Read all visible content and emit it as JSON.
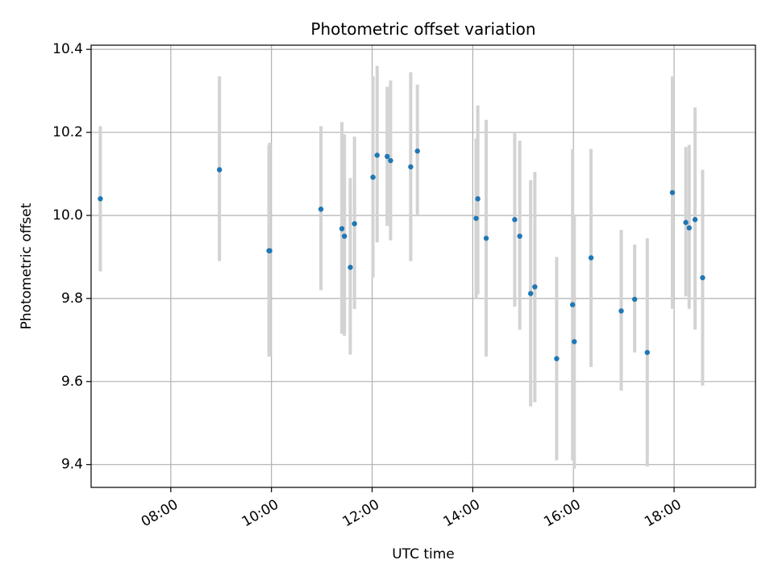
{
  "chart_data": {
    "type": "scatter",
    "title": "Photometric offset variation",
    "xlabel": "UTC time",
    "ylabel": "Photometric offset",
    "x_ticks": [
      "08:00",
      "10:00",
      "12:00",
      "14:00",
      "16:00",
      "18:00"
    ],
    "y_ticks": [
      "9.4",
      "9.6",
      "9.8",
      "10.0",
      "10.2",
      "10.4"
    ],
    "xlim": [
      "06:25",
      "19:37"
    ],
    "ylim": [
      9.345,
      10.41
    ],
    "grid": true,
    "colors": {
      "point": "#1f77b4",
      "errorbar": "#d3d3d3",
      "grid": "#b0b0b0"
    },
    "points": [
      {
        "x": "06:36",
        "y": 10.04,
        "yerr_low": 9.865,
        "yerr_high": 10.215
      },
      {
        "x": "08:58",
        "y": 10.11,
        "yerr_low": 9.89,
        "yerr_high": 10.335
      },
      {
        "x": "09:57",
        "y": 9.915,
        "yerr_low": 9.66,
        "yerr_high": 10.17
      },
      {
        "x": "09:58",
        "y": 9.915,
        "yerr_low": 9.66,
        "yerr_high": 10.175
      },
      {
        "x": "10:59",
        "y": 10.015,
        "yerr_low": 9.82,
        "yerr_high": 10.215
      },
      {
        "x": "11:24",
        "y": 9.968,
        "yerr_low": 9.715,
        "yerr_high": 10.225
      },
      {
        "x": "11:27",
        "y": 9.95,
        "yerr_low": 9.71,
        "yerr_high": 10.195
      },
      {
        "x": "11:34",
        "y": 9.875,
        "yerr_low": 9.665,
        "yerr_high": 10.09
      },
      {
        "x": "11:39",
        "y": 9.98,
        "yerr_low": 9.775,
        "yerr_high": 10.19
      },
      {
        "x": "12:01",
        "y": 10.092,
        "yerr_low": 9.85,
        "yerr_high": 10.335
      },
      {
        "x": "12:06",
        "y": 10.145,
        "yerr_low": 9.935,
        "yerr_high": 10.36
      },
      {
        "x": "12:18",
        "y": 10.142,
        "yerr_low": 9.975,
        "yerr_high": 10.31
      },
      {
        "x": "12:22",
        "y": 10.132,
        "yerr_low": 9.94,
        "yerr_high": 10.325
      },
      {
        "x": "12:46",
        "y": 10.117,
        "yerr_low": 9.89,
        "yerr_high": 10.345
      },
      {
        "x": "12:54",
        "y": 10.155,
        "yerr_low": 10.0,
        "yerr_high": 10.315
      },
      {
        "x": "14:04",
        "y": 9.993,
        "yerr_low": 9.8,
        "yerr_high": 10.185
      },
      {
        "x": "14:06",
        "y": 10.04,
        "yerr_low": 9.81,
        "yerr_high": 10.265
      },
      {
        "x": "14:16",
        "y": 9.945,
        "yerr_low": 9.66,
        "yerr_high": 10.23
      },
      {
        "x": "14:50",
        "y": 9.99,
        "yerr_low": 9.78,
        "yerr_high": 10.2
      },
      {
        "x": "14:56",
        "y": 9.95,
        "yerr_low": 9.725,
        "yerr_high": 10.18
      },
      {
        "x": "15:09",
        "y": 9.812,
        "yerr_low": 9.54,
        "yerr_high": 10.085
      },
      {
        "x": "15:14",
        "y": 9.828,
        "yerr_low": 9.55,
        "yerr_high": 10.105
      },
      {
        "x": "15:40",
        "y": 9.655,
        "yerr_low": 9.41,
        "yerr_high": 9.9
      },
      {
        "x": "15:59",
        "y": 9.785,
        "yerr_low": 9.41,
        "yerr_high": 10.16
      },
      {
        "x": "16:01",
        "y": 9.696,
        "yerr_low": 9.39,
        "yerr_high": 10.0
      },
      {
        "x": "16:21",
        "y": 9.898,
        "yerr_low": 9.635,
        "yerr_high": 10.16
      },
      {
        "x": "16:57",
        "y": 9.77,
        "yerr_low": 9.578,
        "yerr_high": 9.965
      },
      {
        "x": "17:13",
        "y": 9.798,
        "yerr_low": 9.67,
        "yerr_high": 9.93
      },
      {
        "x": "17:28",
        "y": 9.67,
        "yerr_low": 9.395,
        "yerr_high": 9.945
      },
      {
        "x": "17:58",
        "y": 10.055,
        "yerr_low": 9.775,
        "yerr_high": 10.335
      },
      {
        "x": "18:14",
        "y": 9.983,
        "yerr_low": 9.805,
        "yerr_high": 10.165
      },
      {
        "x": "18:18",
        "y": 9.97,
        "yerr_low": 9.775,
        "yerr_high": 10.17
      },
      {
        "x": "18:25",
        "y": 9.99,
        "yerr_low": 9.725,
        "yerr_high": 10.26
      },
      {
        "x": "18:34",
        "y": 9.85,
        "yerr_low": 9.59,
        "yerr_high": 10.11
      }
    ]
  }
}
